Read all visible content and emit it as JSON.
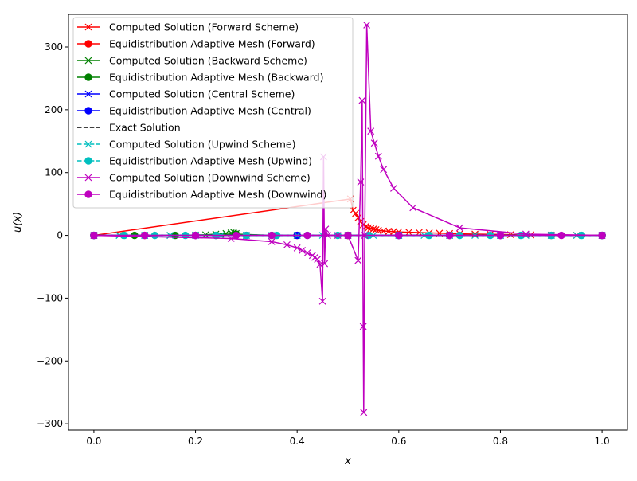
{
  "chart_data": {
    "type": "line",
    "xlabel": "x",
    "ylabel": "u(x)",
    "xlim": [
      -0.05,
      1.05
    ],
    "ylim": [
      -310,
      352
    ],
    "xticks": [
      0.0,
      0.2,
      0.4,
      0.6,
      0.8,
      1.0
    ],
    "xtick_labels": [
      "0.0",
      "0.2",
      "0.4",
      "0.6",
      "0.8",
      "1.0"
    ],
    "yticks": [
      -300,
      -200,
      -100,
      0,
      100,
      200,
      300
    ],
    "ytick_labels": [
      "−300",
      "−200",
      "−100",
      "0",
      "100",
      "200",
      "300"
    ],
    "grid": false,
    "legend_position": "top-left",
    "series": [
      {
        "name": "Computed Solution (Forward Scheme)",
        "color": "#ff0000",
        "marker": "x",
        "linestyle": "solid",
        "x": [
          0.0,
          0.505,
          0.51,
          0.515,
          0.52,
          0.525,
          0.53,
          0.535,
          0.54,
          0.545,
          0.55,
          0.555,
          0.56,
          0.57,
          0.58,
          0.59,
          0.6,
          0.62,
          0.64,
          0.66,
          0.68,
          0.7,
          0.72,
          0.75,
          0.78,
          0.82,
          0.86,
          0.9,
          0.95,
          1.0
        ],
        "y": [
          0,
          58,
          40,
          35,
          28,
          22,
          17,
          14,
          12,
          11,
          10,
          9,
          8,
          7,
          6.5,
          6,
          5.5,
          5,
          4.5,
          4,
          3.5,
          3,
          2.5,
          2,
          1.6,
          1.2,
          0.8,
          0.5,
          0.2,
          0
        ]
      },
      {
        "name": "Equidistribution Adaptive Mesh (Forward)",
        "color": "#ff0000",
        "marker": "o",
        "linestyle": "solid",
        "x": [
          0.0,
          0.1,
          0.2,
          0.3,
          0.4,
          0.5,
          0.6,
          0.7,
          0.8,
          0.9,
          1.0
        ],
        "y": [
          0,
          0,
          0,
          0,
          0,
          0,
          0,
          0,
          0,
          0,
          0
        ]
      },
      {
        "name": "Computed Solution (Backward Scheme)",
        "color": "#008000",
        "marker": "x",
        "linestyle": "solid",
        "x": [
          0.0,
          0.05,
          0.1,
          0.15,
          0.2,
          0.22,
          0.24,
          0.26,
          0.27,
          0.275,
          0.28,
          0.3,
          0.4,
          0.5,
          0.6,
          0.7,
          0.8,
          0.9,
          1.0
        ],
        "y": [
          0,
          0,
          0,
          0,
          0.5,
          1,
          2,
          3,
          4,
          5,
          3,
          0,
          0,
          0,
          0,
          0,
          0,
          0,
          0
        ]
      },
      {
        "name": "Equidistribution Adaptive Mesh (Backward)",
        "color": "#008000",
        "marker": "o",
        "linestyle": "solid",
        "x": [
          0.0,
          0.08,
          0.16,
          0.24,
          0.28,
          0.35,
          0.5,
          0.7,
          1.0
        ],
        "y": [
          0,
          0,
          0,
          0,
          2,
          0,
          0,
          0,
          0
        ]
      },
      {
        "name": "Computed Solution (Central Scheme)",
        "color": "#0000ff",
        "marker": "x",
        "linestyle": "solid",
        "x": [
          0.0,
          0.1,
          0.2,
          0.3,
          0.4,
          0.5,
          0.6,
          0.7,
          0.8,
          0.9,
          1.0
        ],
        "y": [
          0,
          0,
          0,
          0,
          0,
          0,
          0,
          0,
          0,
          0,
          0
        ]
      },
      {
        "name": "Equidistribution Adaptive Mesh (Central)",
        "color": "#0000ff",
        "marker": "o",
        "linestyle": "solid",
        "x": [
          0.0,
          0.2,
          0.4,
          0.6,
          0.8,
          1.0
        ],
        "y": [
          0,
          0,
          0,
          0,
          0,
          0
        ]
      },
      {
        "name": "Exact Solution",
        "color": "#000000",
        "marker": "none",
        "linestyle": "dashed",
        "x": [
          0.0,
          0.25,
          0.5,
          0.75,
          1.0
        ],
        "y": [
          0,
          0,
          0,
          0,
          0
        ]
      },
      {
        "name": "Computed Solution (Upwind Scheme)",
        "color": "#00bfbf",
        "marker": "x",
        "linestyle": "dashed",
        "x": [
          0.0,
          0.05,
          0.1,
          0.15,
          0.2,
          0.25,
          0.3,
          0.35,
          0.4,
          0.45,
          0.5,
          0.55,
          0.6,
          0.65,
          0.7,
          0.75,
          0.8,
          0.85,
          0.9,
          0.95,
          1.0
        ],
        "y": [
          0,
          0,
          0,
          0,
          0,
          0,
          0,
          0,
          0,
          0,
          0,
          0,
          0,
          0,
          0,
          0,
          0,
          0,
          0,
          0,
          0
        ]
      },
      {
        "name": "Equidistribution Adaptive Mesh (Upwind)",
        "color": "#00bfbf",
        "marker": "o",
        "linestyle": "dashed",
        "x": [
          0.0,
          0.06,
          0.12,
          0.18,
          0.24,
          0.3,
          0.36,
          0.42,
          0.48,
          0.54,
          0.6,
          0.66,
          0.72,
          0.78,
          0.84,
          0.9,
          0.96,
          1.0
        ],
        "y": [
          0,
          0,
          0,
          0,
          0,
          0,
          0,
          0,
          0,
          0,
          0,
          0,
          0,
          0,
          0,
          0,
          0,
          0
        ]
      },
      {
        "name": "Computed Solution (Downwind Scheme)",
        "color": "#bf00bf",
        "marker": "x",
        "linestyle": "solid",
        "x": [
          0.0,
          0.27,
          0.35,
          0.38,
          0.4,
          0.41,
          0.42,
          0.43,
          0.435,
          0.44,
          0.445,
          0.45,
          0.452,
          0.454,
          0.456,
          0.46,
          0.48,
          0.5,
          0.52,
          0.525,
          0.528,
          0.53,
          0.531,
          0.533,
          0.537,
          0.545,
          0.552,
          0.56,
          0.57,
          0.59,
          0.628,
          0.72,
          0.85,
          1.0
        ],
        "y": [
          0,
          -5,
          -10,
          -15,
          -20,
          -24,
          -28,
          -32,
          -35,
          -38,
          -46,
          -105,
          125,
          -45,
          10,
          0,
          0,
          0,
          -40,
          85,
          215,
          -145,
          -282,
          0,
          335,
          166,
          147,
          126,
          105,
          75,
          44,
          12,
          2,
          0
        ]
      },
      {
        "name": "Equidistribution Adaptive Mesh (Downwind)",
        "color": "#bf00bf",
        "marker": "o",
        "linestyle": "solid",
        "x": [
          0.0,
          0.1,
          0.2,
          0.28,
          0.35,
          0.42,
          0.5,
          0.6,
          0.7,
          0.8,
          0.92,
          1.0
        ],
        "y": [
          0,
          0,
          0,
          0,
          0,
          0,
          0,
          0,
          0,
          0,
          0,
          0
        ]
      }
    ]
  }
}
